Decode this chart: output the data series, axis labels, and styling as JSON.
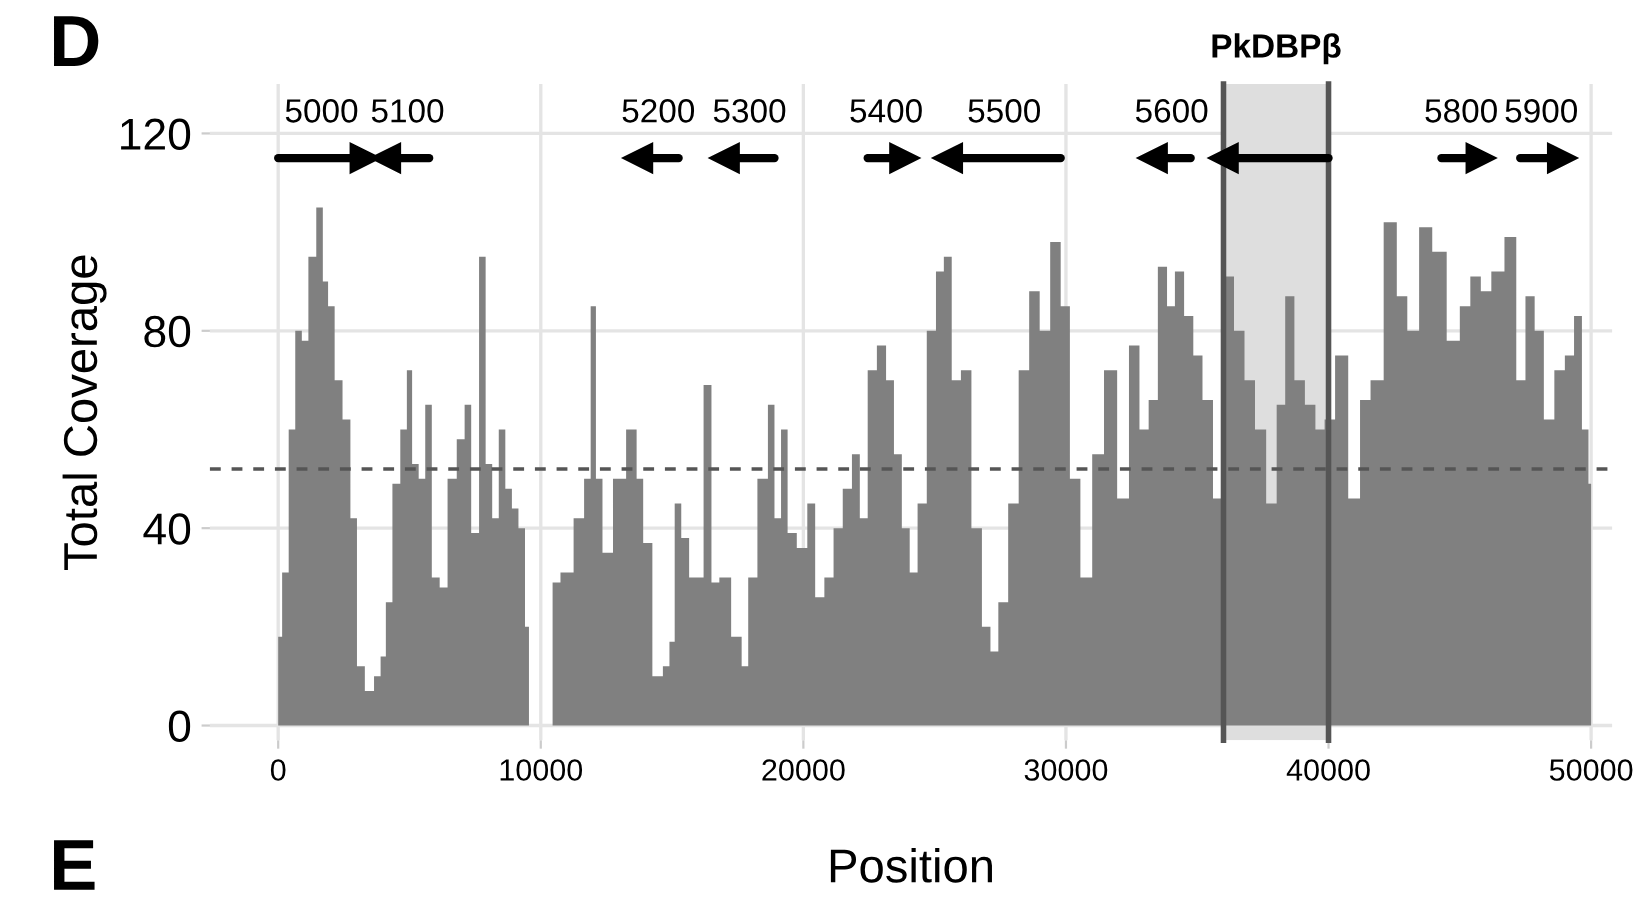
{
  "chart_data": {
    "type": "area",
    "xlabel": "Position",
    "ylabel": "Total Coverage",
    "xlim": [
      -2600,
      50800
    ],
    "ylim": [
      -3,
      130
    ],
    "xticks": [
      0,
      10000,
      20000,
      30000,
      40000,
      50000
    ],
    "yticks": [
      0,
      40,
      80,
      120
    ],
    "grid": true,
    "series": [
      {
        "color": "#808080",
        "x": [
          0,
          300,
          500,
          800,
          1000,
          1300,
          1600,
          1800,
          2000,
          2300,
          2600,
          2900,
          3100,
          3500,
          3800,
          4000,
          4200,
          4500,
          4800,
          5000,
          5200,
          5500,
          5700,
          6000,
          6300,
          6600,
          7000,
          7200,
          7500,
          7800,
          8000,
          8300,
          8500,
          8800,
          9000,
          9300,
          9500,
          9600,
          10400,
          10500,
          11000,
          11500,
          11800,
          12000,
          12200,
          12500,
          13000,
          13500,
          13800,
          14000,
          14500,
          14800,
          15000,
          15200,
          15500,
          15800,
          16000,
          16400,
          16600,
          17000,
          17500,
          17800,
          18000,
          18500,
          18800,
          19000,
          19300,
          19500,
          20000,
          20300,
          20600,
          21000,
          21300,
          21700,
          22000,
          22300,
          22600,
          23000,
          23300,
          23600,
          23900,
          24200,
          24500,
          24900,
          25200,
          25500,
          25800,
          26200,
          26600,
          27000,
          27250,
          27600,
          28000,
          28400,
          28800,
          29200,
          29600,
          30000,
          30300,
          30800,
          31200,
          31700,
          32200,
          32600,
          33000,
          33300,
          33700,
          34000,
          34300,
          34700,
          35000,
          35400,
          35800,
          36200,
          36600,
          37000,
          37400,
          37850,
          38200,
          38500,
          38900,
          39300,
          39700,
          40000,
          40500,
          41000,
          41400,
          41800,
          42400,
          42800,
          43200,
          43700,
          44200,
          44800,
          45200,
          45600,
          46000,
          46400,
          47000,
          47300,
          47700,
          48000,
          48400,
          48800,
          49200,
          49500,
          49800,
          50000
        ],
        "values": [
          18,
          31,
          60,
          80,
          78,
          95,
          105,
          90,
          85,
          70,
          62,
          42,
          12,
          7,
          10,
          14,
          25,
          49,
          60,
          72,
          53,
          50,
          65,
          30,
          28,
          50,
          58,
          65,
          39,
          95,
          53,
          42,
          60,
          48,
          44,
          40,
          20,
          0,
          0,
          29,
          31,
          42,
          50,
          85,
          50,
          35,
          50,
          60,
          50,
          37,
          10,
          12,
          17,
          45,
          38,
          30,
          30,
          69,
          29,
          30,
          18,
          12,
          30,
          50,
          65,
          42,
          60,
          39,
          36,
          45,
          26,
          30,
          40,
          48,
          55,
          42,
          72,
          77,
          70,
          55,
          40,
          31,
          45,
          80,
          92,
          95,
          70,
          72,
          40,
          20,
          15,
          25,
          45,
          72,
          88,
          80,
          98,
          85,
          50,
          30,
          55,
          72,
          46,
          77,
          60,
          66,
          93,
          85,
          92,
          83,
          75,
          66,
          46,
          91,
          80,
          70,
          60,
          45,
          65,
          87,
          70,
          65,
          60,
          62,
          75,
          46,
          66,
          70,
          102,
          87,
          80,
          101,
          96,
          78,
          85,
          91,
          88,
          92,
          99,
          70,
          87,
          80,
          62,
          72,
          75,
          83,
          60,
          49
        ]
      },
      {
        "type": "line",
        "name": "5000",
        "color": "#000000",
        "x": [
          0,
          3300
        ],
        "values": [
          115,
          115
        ]
      },
      {
        "type": "line",
        "name": "5100",
        "color": "#000000",
        "x": [
          5750,
          4100
        ],
        "values": [
          115,
          115
        ]
      },
      {
        "type": "line",
        "name": "5200",
        "color": "#000000",
        "x": [
          15250,
          13700
        ],
        "values": [
          115,
          115
        ]
      },
      {
        "type": "line",
        "name": "5300",
        "color": "#000000",
        "x": [
          18900,
          17000
        ],
        "values": [
          115,
          115
        ]
      },
      {
        "type": "line",
        "name": "5400",
        "color": "#000000",
        "x": [
          22450,
          23850
        ],
        "values": [
          115,
          115
        ]
      },
      {
        "type": "line",
        "name": "5500",
        "color": "#000000",
        "x": [
          29800,
          25500
        ],
        "values": [
          115,
          115
        ]
      },
      {
        "type": "line",
        "name": "5600",
        "color": "#000000",
        "x": [
          34750,
          33300
        ],
        "values": [
          115,
          115
        ]
      },
      {
        "type": "line",
        "color": "#000000",
        "x": [
          40000,
          36000
        ],
        "values": [
          115,
          115
        ]
      },
      {
        "type": "line",
        "name": "5800",
        "color": "#000000",
        "x": [
          44300,
          45800
        ],
        "values": [
          115,
          115
        ]
      },
      {
        "type": "line",
        "name": "5900",
        "color": "#000000",
        "x": [
          47300,
          48900
        ],
        "values": [
          115,
          115
        ]
      }
    ],
    "ref_lines": [
      {
        "axis": "y",
        "value": 52,
        "color": "#555555",
        "line_style": "dashed"
      },
      {
        "axis": "x",
        "value": 36000,
        "color": "#555555",
        "line_style": "solid"
      },
      {
        "axis": "x",
        "value": 40000,
        "color": "#555555",
        "line_style": "solid"
      }
    ],
    "bands": [
      {
        "axis": "x",
        "from": 36000,
        "to": 40000,
        "label": "PkDBPβ",
        "color": "#dedede"
      }
    ],
    "annotations": [
      "D",
      "E"
    ]
  }
}
